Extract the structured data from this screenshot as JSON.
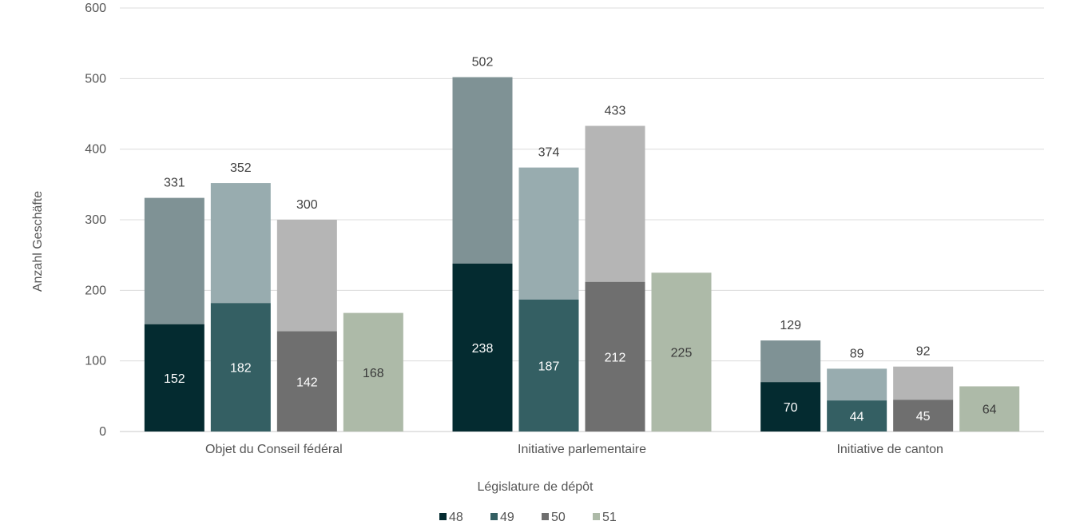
{
  "chart_data": {
    "type": "bar",
    "title": "",
    "xlabel": "Législature de dépôt",
    "ylabel": "Anzahl Geschäfte",
    "ylim": [
      0,
      600
    ],
    "yticks": [
      0,
      100,
      200,
      300,
      400,
      500,
      600
    ],
    "grid": true,
    "legend_position": "bottom",
    "categories": [
      "Objet du Conseil fédéral",
      "Initiative parlementaire",
      "Initiative de canton"
    ],
    "series": [
      {
        "name": "48",
        "values": [
          152,
          238,
          70
        ],
        "totals": [
          331,
          502,
          129
        ],
        "color": "#042b30",
        "total_color": "#7f9295",
        "label_color": "#ffffff"
      },
      {
        "name": "49",
        "values": [
          182,
          187,
          44
        ],
        "totals": [
          352,
          374,
          89
        ],
        "color": "#345f63",
        "total_color": "#98acaf",
        "label_color": "#ffffff"
      },
      {
        "name": "50",
        "values": [
          142,
          212,
          45
        ],
        "totals": [
          300,
          433,
          92
        ],
        "color": "#6f6f6f",
        "total_color": "#b5b5b5",
        "label_color": "#ffffff"
      },
      {
        "name": "51",
        "values": [
          168,
          225,
          64
        ],
        "totals": [
          null,
          null,
          null
        ],
        "color": "#adbaa8",
        "total_color": "#adbaa8",
        "label_color": "#3a3a3a"
      }
    ]
  }
}
